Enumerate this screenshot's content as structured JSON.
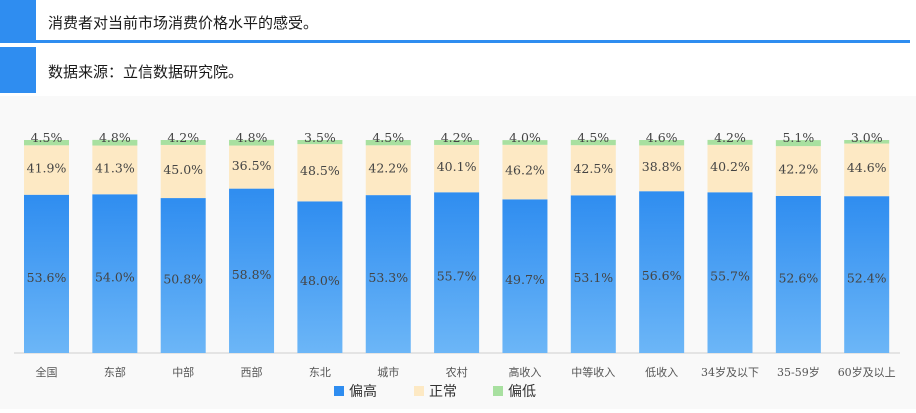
{
  "header": {
    "title": "消费者对当前市场消费价格水平的感受。",
    "source": "数据来源：立信数据研究院。"
  },
  "colors": {
    "accent": "#2f8df0",
    "high": "#2f8df0",
    "normal": "#fde9c4",
    "low": "#a8e0a0"
  },
  "chart_data": {
    "type": "bar",
    "stacked": true,
    "categories": [
      "全国",
      "东部",
      "中部",
      "西部",
      "东北",
      "城市",
      "农村",
      "高收入",
      "中等收入",
      "低收入",
      "34岁及以下",
      "35-59岁",
      "60岁及以上"
    ],
    "series": [
      {
        "name": "偏高",
        "values": [
          53.6,
          54.0,
          50.8,
          58.8,
          48.0,
          53.3,
          55.7,
          49.7,
          53.1,
          56.6,
          55.7,
          52.6,
          52.4
        ],
        "labels": [
          "53.6%",
          "54.0%",
          "50.8%",
          "58.8%",
          "48.0%",
          "53.3%",
          "55.7%",
          "49.7%",
          "53.1%",
          "56.6%",
          "55.7%",
          "52.6%",
          "52.4%"
        ]
      },
      {
        "name": "正常",
        "values": [
          41.9,
          41.3,
          45.0,
          36.5,
          48.5,
          42.2,
          40.1,
          46.2,
          42.5,
          38.8,
          40.2,
          42.2,
          44.6
        ],
        "labels": [
          "41.9%",
          "41.3%",
          "45.0%",
          "36.5%",
          "48.5%",
          "42.2%",
          "40.1%",
          "46.2%",
          "42.5%",
          "38.8%",
          "40.2%",
          "42.2%",
          "44.6%"
        ]
      },
      {
        "name": "偏低",
        "values": [
          4.5,
          4.8,
          4.2,
          4.8,
          3.5,
          4.5,
          4.2,
          4.0,
          4.5,
          4.6,
          4.2,
          5.1,
          3.0
        ],
        "labels": [
          "4.5%",
          "4.8%",
          "4.2%",
          "4.8%",
          "3.5%",
          "4.5%",
          "4.2%",
          "4.0%",
          "4.5%",
          "4.6%",
          "4.2%",
          "5.1%",
          "3.0%"
        ]
      }
    ],
    "ylim": [
      0,
      100
    ],
    "grid": false,
    "legend": "bottom"
  }
}
